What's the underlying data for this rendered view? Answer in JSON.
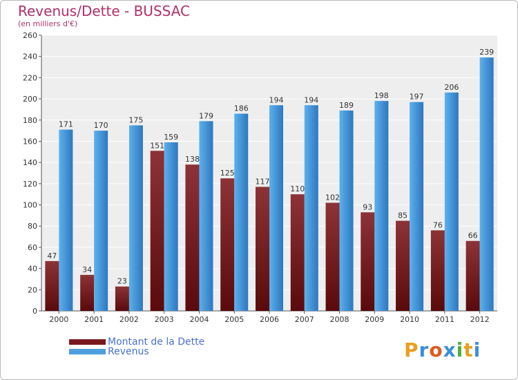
{
  "header": {
    "title": "Revenus/Dette - BUSSAC",
    "subtitle": "(en milliers d'€)"
  },
  "legend": [
    {
      "label": "Montant de la Dette",
      "color": "#7a1a1f"
    },
    {
      "label": "Revenus",
      "color": "#4d9fe0"
    }
  ],
  "logo": {
    "text": "Proxiti"
  },
  "colors": {
    "title": "#b0306a",
    "dette_top": "#8c3337",
    "dette_bottom": "#5a0a0c",
    "revenus_top": "#5db0ec",
    "revenus_bottom": "#2d78c0",
    "plot_bg": "#eeeeee",
    "grid": "#ffffff"
  },
  "chart_data": {
    "type": "bar",
    "categories": [
      "2000",
      "2001",
      "2002",
      "2003",
      "2004",
      "2005",
      "2006",
      "2007",
      "2008",
      "2009",
      "2010",
      "2011",
      "2012"
    ],
    "series": [
      {
        "name": "Montant de la Dette",
        "values": [
          47,
          34,
          23,
          151,
          138,
          125,
          117,
          110,
          102,
          93,
          85,
          76,
          66
        ]
      },
      {
        "name": "Revenus",
        "values": [
          171,
          170,
          175,
          159,
          179,
          186,
          194,
          194,
          189,
          198,
          197,
          206,
          239
        ]
      }
    ],
    "ylim": [
      0,
      260
    ],
    "yticks": [
      0,
      20,
      40,
      60,
      80,
      100,
      120,
      140,
      160,
      180,
      200,
      220,
      240,
      260
    ],
    "grid": true,
    "legend_position": "bottom-left"
  }
}
